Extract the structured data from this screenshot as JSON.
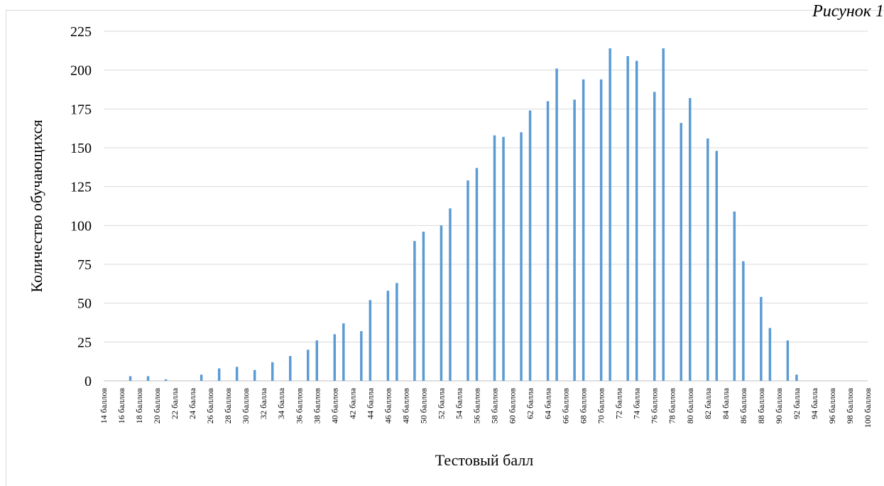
{
  "figure_label": "Рисунок 1",
  "colors": {
    "bar": "#5b9bd5",
    "grid": "#d9d9d9",
    "frame": "#d9d9d9",
    "text": "#000000"
  },
  "chart_data": {
    "type": "bar",
    "title": "",
    "xlabel": "Тестовый балл",
    "ylabel": "Количество обучающихся",
    "ylim": [
      0,
      225
    ],
    "yticks": [
      0,
      25,
      50,
      75,
      100,
      125,
      150,
      175,
      200,
      225
    ],
    "grid": true,
    "legend": "none",
    "x_tick_labels": [
      "14 баллов",
      "16 баллов",
      "18 баллов",
      "20 баллов",
      "22 балла",
      "24 балла",
      "26 баллов",
      "28 баллов",
      "30 баллов",
      "32 балла",
      "34 балла",
      "36 баллов",
      "38 баллов",
      "40 баллов",
      "42 балла",
      "44 балла",
      "46 баллов",
      "48 баллов",
      "50 баллов",
      "52 балла",
      "54 балла",
      "56 баллов",
      "58 баллов",
      "60 баллов",
      "62 балла",
      "64 балла",
      "66 баллов",
      "68 баллов",
      "70 баллов",
      "72 балла",
      "74 балла",
      "76 баллов",
      "78 баллов",
      "80 баллов",
      "82 балла",
      "84 балла",
      "86 баллов",
      "88 баллов",
      "90 баллов",
      "92 балла",
      "94 балла",
      "96 баллов",
      "98 баллов",
      "100 баллов"
    ],
    "x_tick_values": [
      14,
      16,
      18,
      20,
      22,
      24,
      26,
      28,
      30,
      32,
      34,
      36,
      38,
      40,
      42,
      44,
      46,
      48,
      50,
      52,
      54,
      56,
      58,
      60,
      62,
      64,
      66,
      68,
      70,
      72,
      74,
      76,
      78,
      80,
      82,
      84,
      86,
      88,
      90,
      92,
      94,
      96,
      98,
      100
    ],
    "x": [
      17,
      19,
      21,
      23,
      25,
      27,
      29,
      31,
      33,
      35,
      37,
      38,
      40,
      41,
      43,
      44,
      46,
      47,
      49,
      50,
      52,
      53,
      55,
      56,
      58,
      59,
      61,
      62,
      64,
      65,
      67,
      68,
      70,
      71,
      73,
      74,
      76,
      77,
      79,
      80,
      82,
      83,
      85,
      86,
      88,
      89,
      91,
      92,
      94,
      95,
      97
    ],
    "values": [
      3,
      3,
      1,
      0,
      4,
      8,
      9,
      7,
      12,
      16,
      20,
      26,
      30,
      37,
      32,
      52,
      58,
      63,
      90,
      96,
      100,
      111,
      129,
      137,
      158,
      157,
      160,
      174,
      180,
      201,
      181,
      194,
      194,
      214,
      209,
      206,
      186,
      214,
      166,
      182,
      156,
      148,
      109,
      77,
      54,
      34,
      26,
      4,
      0,
      0,
      0
    ]
  }
}
